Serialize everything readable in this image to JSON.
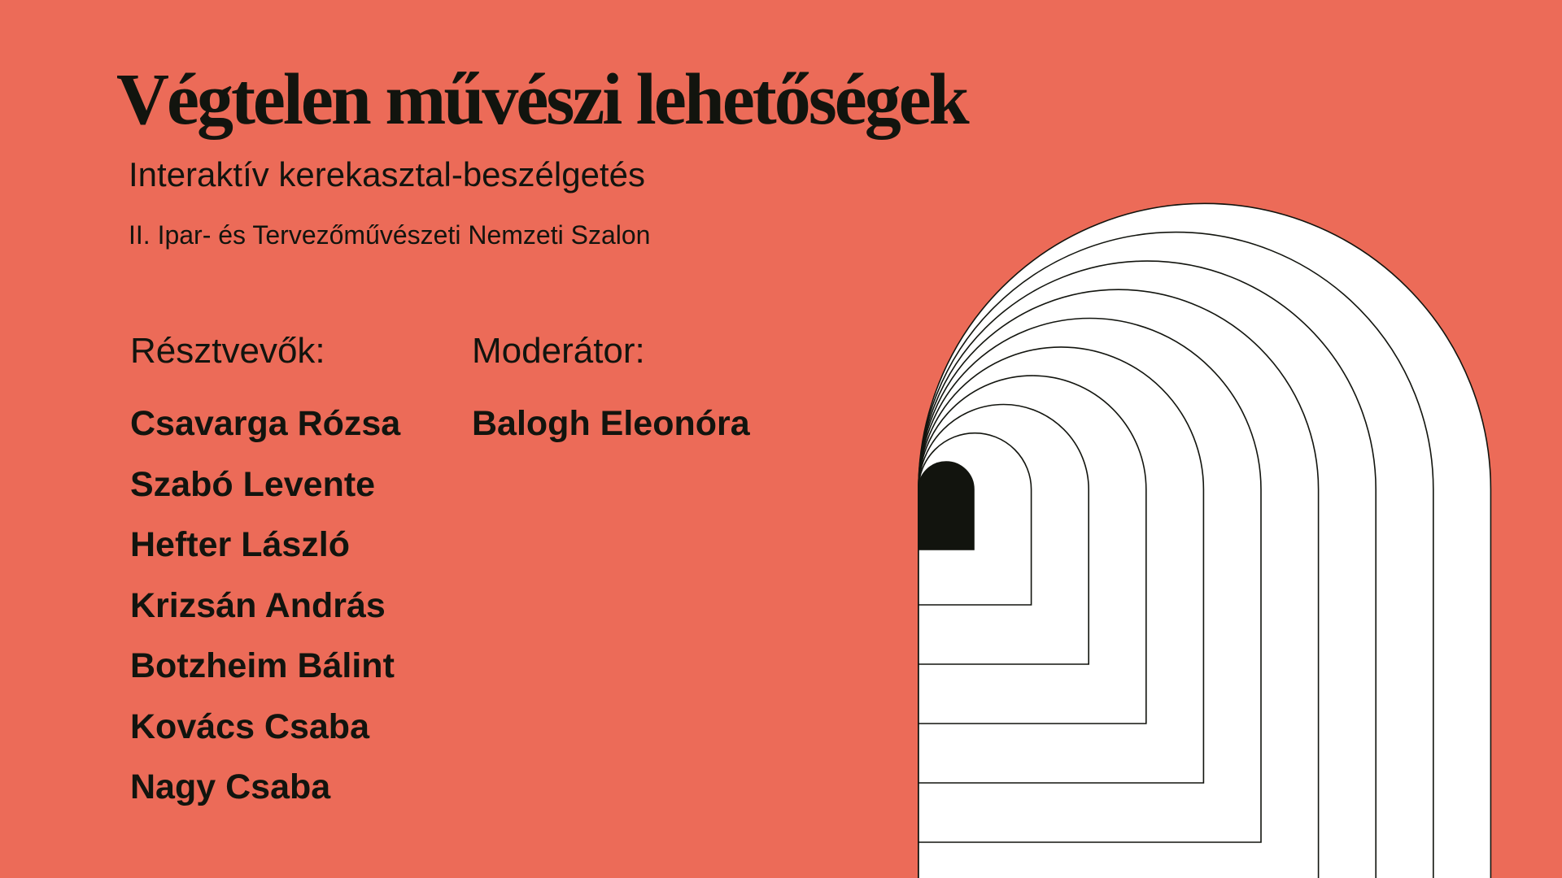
{
  "title": "Végtelen művészi lehetőségek",
  "subtitle": "Interaktív kerekasztal-beszélgetés",
  "event": "II. Ipar- és Tervezőművészeti Nemzeti Szalon",
  "participants": {
    "heading": "Résztvevők:",
    "names": [
      "Csavarga Rózsa",
      "Szabó Levente",
      "Hefter László",
      "Krizsán András",
      "Botzheim Bálint",
      "Kovács Csaba",
      "Nagy Csaba"
    ]
  },
  "moderator": {
    "heading": "Moderátor:",
    "names": [
      "Balogh Eleonóra"
    ]
  },
  "colors": {
    "background": "#ec6b58",
    "ink": "#12140e",
    "arch_fill": "#ffffff"
  },
  "graphic": {
    "type": "nested-arches",
    "count": 10
  }
}
